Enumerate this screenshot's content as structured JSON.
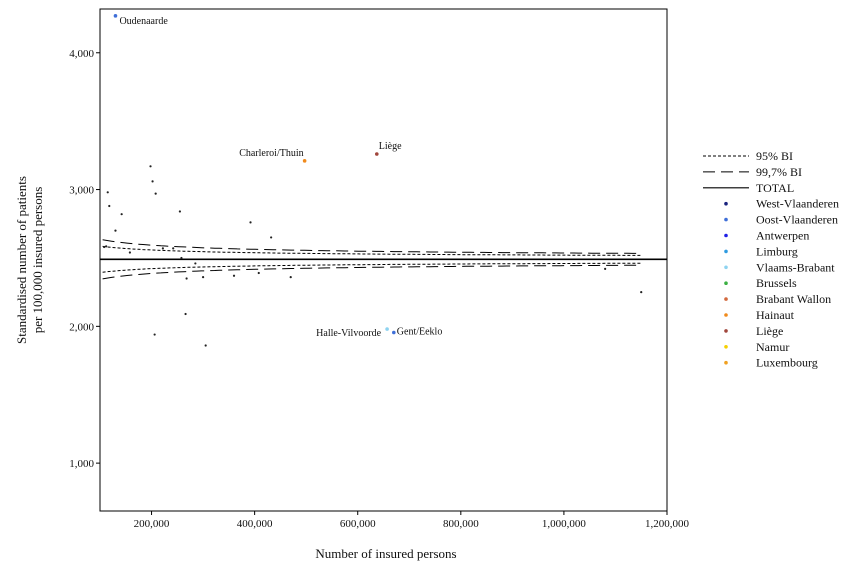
{
  "chart_data": {
    "type": "scatter",
    "title": "",
    "xlabel": "Number of insured persons",
    "ylabel_lines": [
      "Standardised number of patients",
      "per 100,000 insured persons"
    ],
    "xlim": [
      100000,
      1200000
    ],
    "ylim": [
      650,
      4320
    ],
    "x_ticks": [
      200000,
      400000,
      600000,
      800000,
      1000000,
      1200000
    ],
    "x_tick_labels": [
      "200,000",
      "400,000",
      "600,000",
      "800,000",
      "1,000,000",
      "1,200,000"
    ],
    "y_ticks": [
      1000,
      2000,
      3000,
      4000
    ],
    "y_tick_labels": [
      "1,000",
      "2,000",
      "3,000",
      "4,000"
    ],
    "grid": false,
    "legend_position": "right",
    "reference_line": {
      "name": "TOTAL",
      "y": 2490
    },
    "funnel_limits": [
      {
        "name": "95% BI",
        "style": "dotted",
        "z": 1.96
      },
      {
        "name": "99,7% BI",
        "style": "dashed",
        "z": 2.97
      }
    ],
    "funnel_x_range": [
      105000,
      1150000
    ],
    "provinces": [
      {
        "name": "West-Vlaanderen",
        "color": "#1a237e"
      },
      {
        "name": "Oost-Vlaanderen",
        "color": "#3f6fd8"
      },
      {
        "name": "Antwerpen",
        "color": "#1f1fe6"
      },
      {
        "name": "Limburg",
        "color": "#2f9be0"
      },
      {
        "name": "Vlaams-Brabant",
        "color": "#8ed3f0"
      },
      {
        "name": "Brussels",
        "color": "#3cb043"
      },
      {
        "name": "Brabant Wallon",
        "color": "#d2693e"
      },
      {
        "name": "Hainaut",
        "color": "#f08a1c"
      },
      {
        "name": "Liège",
        "color": "#a0463c"
      },
      {
        "name": "Namur",
        "color": "#f5d000"
      },
      {
        "name": "Luxembourg",
        "color": "#f0a020"
      }
    ],
    "highlighted_points": [
      {
        "label": "Oudenaarde",
        "x": 130000,
        "y": 4270,
        "color": "#3f6fd8"
      },
      {
        "label": "Charleroi/Thuin",
        "x": 497000,
        "y": 3210,
        "color": "#f08a1c"
      },
      {
        "label": "Liège",
        "x": 637000,
        "y": 3260,
        "color": "#a0463c"
      },
      {
        "label": "Halle-Vilvoorde",
        "x": 657000,
        "y": 1980,
        "color": "#8ed3f0"
      },
      {
        "label": "Gent/Eeklo",
        "x": 670000,
        "y": 1955,
        "color": "#3f6fd8"
      }
    ],
    "other_points": [
      {
        "x": 108000,
        "y": 2580
      },
      {
        "x": 112000,
        "y": 2585
      },
      {
        "x": 115000,
        "y": 2980
      },
      {
        "x": 118000,
        "y": 2880
      },
      {
        "x": 130000,
        "y": 2700
      },
      {
        "x": 142000,
        "y": 2820
      },
      {
        "x": 158000,
        "y": 2540
      },
      {
        "x": 198000,
        "y": 3170
      },
      {
        "x": 202000,
        "y": 3060
      },
      {
        "x": 208000,
        "y": 2970
      },
      {
        "x": 206000,
        "y": 1940
      },
      {
        "x": 222000,
        "y": 2570
      },
      {
        "x": 242000,
        "y": 2570
      },
      {
        "x": 255000,
        "y": 2840
      },
      {
        "x": 258000,
        "y": 2500
      },
      {
        "x": 266000,
        "y": 2090
      },
      {
        "x": 268000,
        "y": 2350
      },
      {
        "x": 285000,
        "y": 2460
      },
      {
        "x": 300000,
        "y": 2360
      },
      {
        "x": 305000,
        "y": 1860
      },
      {
        "x": 360000,
        "y": 2370
      },
      {
        "x": 392000,
        "y": 2760
      },
      {
        "x": 408000,
        "y": 2390
      },
      {
        "x": 432000,
        "y": 2650
      },
      {
        "x": 470000,
        "y": 2360
      },
      {
        "x": 1080000,
        "y": 2420
      },
      {
        "x": 1150000,
        "y": 2250
      }
    ],
    "other_point_color": "#222222"
  }
}
